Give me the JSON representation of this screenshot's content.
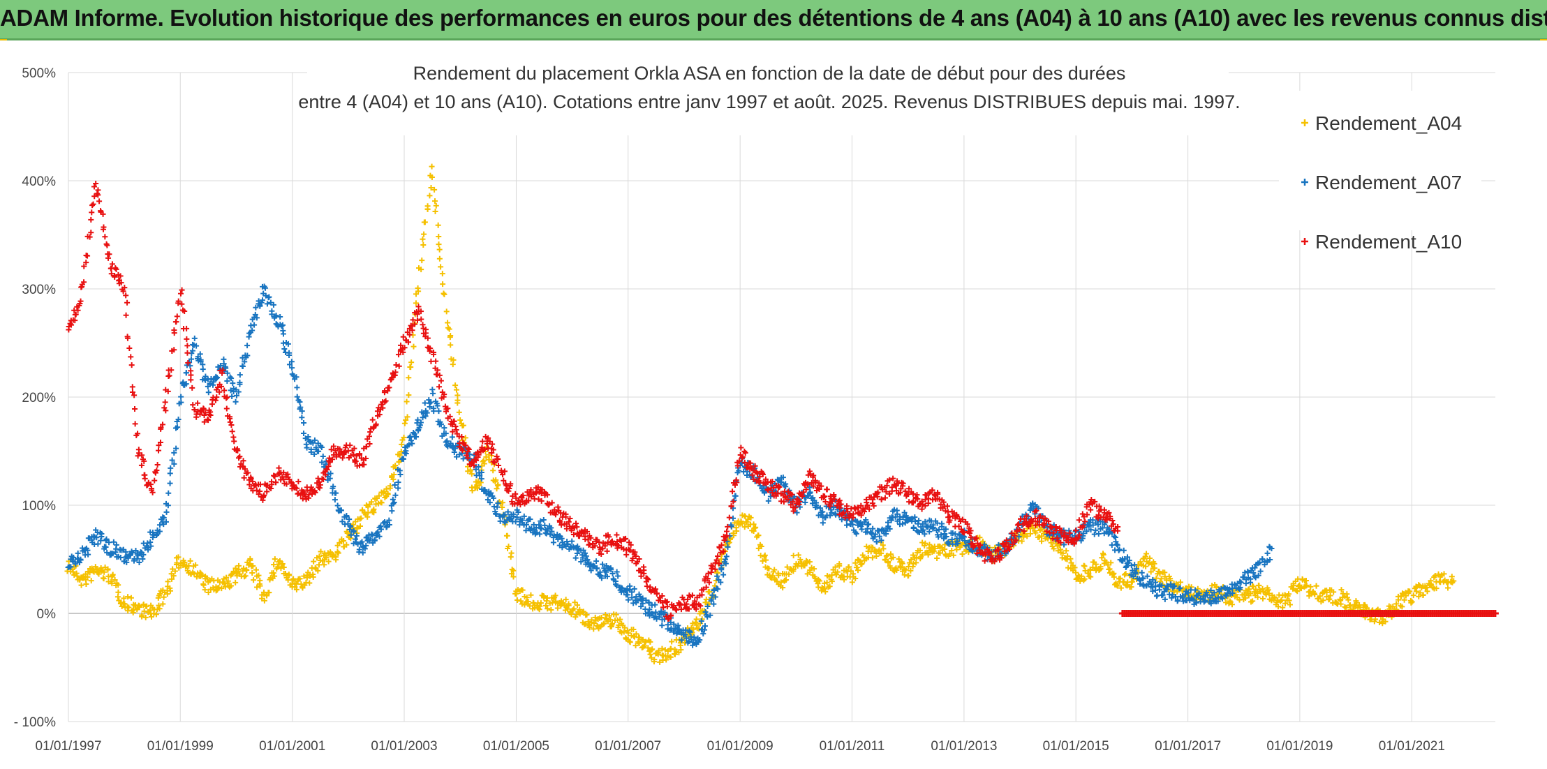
{
  "banner": {
    "text": "ADAM Informe. Evolution historique des performances en euros pour des détentions de 4 ans (A04) à 10 ans (A10) avec les revenus connus distribués"
  },
  "chart_data": {
    "type": "scatter",
    "title_lines": [
      "Rendement du placement Orkla ASA en fonction de la date de début pour des durées",
      "entre 4 (A04) et 10 ans (A10). Cotations entre janv 1997 et août. 2025. Revenus DISTRIBUES depuis mai. 1997."
    ],
    "xlabel": "",
    "ylabel": "",
    "x_range": [
      "1997-01-01",
      "2022-06-30"
    ],
    "ylim": [
      -100,
      500
    ],
    "y_ticks": [
      -100,
      0,
      100,
      200,
      300,
      400,
      500
    ],
    "y_tick_labels": [
      "- 100%",
      "0%",
      "100%",
      "200%",
      "300%",
      "400%",
      "500%"
    ],
    "x_tick_labels": [
      "01/01/1997",
      "01/01/1999",
      "01/01/2001",
      "01/01/2003",
      "01/01/2005",
      "01/01/2007",
      "01/01/2009",
      "01/01/2011",
      "01/01/2013",
      "01/01/2015",
      "01/01/2017",
      "01/01/2019",
      "01/01/2021"
    ],
    "grid": true,
    "legend_position": "top-right",
    "marker": "+",
    "series": [
      {
        "name": "Rendement_A04",
        "color": "#f5c000",
        "x": [
          "1997-01-01",
          "1997-04-01",
          "1997-07-01",
          "1997-10-01",
          "1998-01-01",
          "1998-04-01",
          "1998-07-01",
          "1998-10-01",
          "1999-01-01",
          "1999-04-01",
          "1999-07-01",
          "1999-10-01",
          "2000-01-01",
          "2000-04-01",
          "2000-07-01",
          "2000-10-01",
          "2001-01-01",
          "2001-04-01",
          "2001-07-01",
          "2001-10-01",
          "2002-01-01",
          "2002-04-01",
          "2002-07-01",
          "2002-10-01",
          "2003-01-01",
          "2003-04-01",
          "2003-07-01",
          "2003-10-01",
          "2004-01-01",
          "2004-04-01",
          "2004-07-01",
          "2004-10-01",
          "2005-01-01",
          "2005-04-01",
          "2005-07-01",
          "2005-10-01",
          "2006-01-01",
          "2006-04-01",
          "2006-07-01",
          "2006-10-01",
          "2007-01-01",
          "2007-04-01",
          "2007-07-01",
          "2007-10-01",
          "2008-01-01",
          "2008-04-01",
          "2008-07-01",
          "2008-10-01",
          "2009-01-01",
          "2009-04-01",
          "2009-07-01",
          "2009-10-01",
          "2010-01-01",
          "2010-04-01",
          "2010-07-01",
          "2010-10-01",
          "2011-01-01",
          "2011-04-01",
          "2011-07-01",
          "2011-10-01",
          "2012-01-01",
          "2012-04-01",
          "2012-07-01",
          "2012-10-01",
          "2013-01-01",
          "2013-04-01",
          "2013-07-01",
          "2013-10-01",
          "2014-01-01",
          "2014-04-01",
          "2014-07-01",
          "2014-10-01",
          "2015-01-01",
          "2015-04-01",
          "2015-07-01",
          "2015-10-01",
          "2016-01-01",
          "2016-04-01",
          "2016-07-01",
          "2016-10-01",
          "2017-01-01",
          "2017-04-01",
          "2017-07-01",
          "2017-10-01",
          "2018-01-01",
          "2018-04-01",
          "2018-07-01",
          "2018-10-01",
          "2019-01-01",
          "2019-04-01",
          "2019-07-01",
          "2019-10-01",
          "2020-01-01",
          "2020-04-01",
          "2020-07-01",
          "2020-10-01",
          "2021-01-01",
          "2021-04-01",
          "2021-07-01",
          "2021-10-01"
        ],
        "y": [
          45,
          30,
          40,
          35,
          10,
          5,
          0,
          20,
          50,
          40,
          25,
          25,
          35,
          45,
          15,
          50,
          25,
          30,
          50,
          55,
          70,
          90,
          100,
          120,
          160,
          300,
          410,
          280,
          180,
          110,
          150,
          100,
          20,
          10,
          10,
          10,
          5,
          -5,
          -10,
          -5,
          -20,
          -25,
          -40,
          -35,
          -25,
          -10,
          20,
          60,
          90,
          80,
          40,
          30,
          50,
          40,
          25,
          40,
          35,
          55,
          60,
          45,
          40,
          60,
          55,
          60,
          60,
          65,
          55,
          60,
          70,
          80,
          70,
          60,
          35,
          40,
          50,
          30,
          30,
          50,
          35,
          25,
          20,
          15,
          20,
          15,
          15,
          20,
          15,
          10,
          30,
          20,
          15,
          15,
          5,
          0,
          -5,
          10,
          15,
          25,
          30,
          30
        ]
      },
      {
        "name": "Rendement_A07",
        "color": "#1874c0",
        "x": [
          "1997-01-01",
          "1997-04-01",
          "1997-07-01",
          "1997-10-01",
          "1998-01-01",
          "1998-04-01",
          "1998-07-01",
          "1998-10-01",
          "1999-01-01",
          "1999-04-01",
          "1999-07-01",
          "1999-10-01",
          "2000-01-01",
          "2000-04-01",
          "2000-07-01",
          "2000-10-01",
          "2001-01-01",
          "2001-04-01",
          "2001-07-01",
          "2001-10-01",
          "2002-01-01",
          "2002-04-01",
          "2002-07-01",
          "2002-10-01",
          "2003-01-01",
          "2003-04-01",
          "2003-07-01",
          "2003-10-01",
          "2004-01-01",
          "2004-04-01",
          "2004-07-01",
          "2004-10-01",
          "2005-01-01",
          "2005-04-01",
          "2005-07-01",
          "2005-10-01",
          "2006-01-01",
          "2006-04-01",
          "2006-07-01",
          "2006-10-01",
          "2007-01-01",
          "2007-04-01",
          "2007-07-01",
          "2007-10-01",
          "2008-01-01",
          "2008-04-01",
          "2008-07-01",
          "2008-10-01",
          "2009-01-01",
          "2009-04-01",
          "2009-07-01",
          "2009-10-01",
          "2010-01-01",
          "2010-04-01",
          "2010-07-01",
          "2010-10-01",
          "2011-01-01",
          "2011-04-01",
          "2011-07-01",
          "2011-10-01",
          "2012-01-01",
          "2012-04-01",
          "2012-07-01",
          "2012-10-01",
          "2013-01-01",
          "2013-04-01",
          "2013-07-01",
          "2013-10-01",
          "2014-01-01",
          "2014-04-01",
          "2014-07-01",
          "2014-10-01",
          "2015-01-01",
          "2015-04-01",
          "2015-07-01",
          "2015-10-01",
          "2016-01-01",
          "2016-04-01",
          "2016-07-01",
          "2016-10-01",
          "2017-01-01",
          "2017-04-01",
          "2017-07-01",
          "2017-10-01",
          "2018-01-01",
          "2018-04-01",
          "2018-07-01"
        ],
        "y": [
          45,
          55,
          70,
          60,
          55,
          50,
          70,
          90,
          200,
          250,
          210,
          230,
          200,
          260,
          300,
          270,
          230,
          160,
          150,
          110,
          80,
          60,
          70,
          90,
          150,
          175,
          200,
          160,
          150,
          140,
          110,
          90,
          90,
          80,
          80,
          70,
          60,
          50,
          40,
          35,
          20,
          10,
          0,
          -10,
          -20,
          -25,
          10,
          50,
          140,
          130,
          110,
          120,
          100,
          110,
          90,
          100,
          80,
          80,
          70,
          90,
          85,
          80,
          80,
          70,
          70,
          60,
          55,
          60,
          80,
          100,
          80,
          70,
          70,
          80,
          80,
          60,
          40,
          30,
          20,
          20,
          15,
          15,
          15,
          20,
          30,
          40,
          60
        ]
      },
      {
        "name": "Rendement_A10",
        "color": "#e81010",
        "x": [
          "1997-01-01",
          "1997-04-01",
          "1997-07-01",
          "1997-10-01",
          "1998-01-01",
          "1998-04-01",
          "1998-07-01",
          "1998-10-01",
          "1999-01-01",
          "1999-04-01",
          "1999-07-01",
          "1999-10-01",
          "2000-01-01",
          "2000-04-01",
          "2000-07-01",
          "2000-10-01",
          "2001-01-01",
          "2001-04-01",
          "2001-07-01",
          "2001-10-01",
          "2002-01-01",
          "2002-04-01",
          "2002-07-01",
          "2002-10-01",
          "2003-01-01",
          "2003-04-01",
          "2003-07-01",
          "2003-10-01",
          "2004-01-01",
          "2004-04-01",
          "2004-07-01",
          "2004-10-01",
          "2005-01-01",
          "2005-04-01",
          "2005-07-01",
          "2005-10-01",
          "2006-01-01",
          "2006-04-01",
          "2006-07-01",
          "2006-10-01",
          "2007-01-01",
          "2007-04-01",
          "2007-07-01",
          "2007-10-01",
          "2008-01-01",
          "2008-04-01",
          "2008-07-01",
          "2008-10-01",
          "2009-01-01",
          "2009-04-01",
          "2009-07-01",
          "2009-10-01",
          "2010-01-01",
          "2010-04-01",
          "2010-07-01",
          "2010-10-01",
          "2011-01-01",
          "2011-04-01",
          "2011-07-01",
          "2011-10-01",
          "2012-01-01",
          "2012-04-01",
          "2012-07-01",
          "2012-10-01",
          "2013-01-01",
          "2013-04-01",
          "2013-07-01",
          "2013-10-01",
          "2014-01-01",
          "2014-04-01",
          "2014-07-01",
          "2014-10-01",
          "2015-01-01",
          "2015-04-01",
          "2015-07-01",
          "2015-10-01"
        ],
        "y": [
          260,
          300,
          400,
          320,
          300,
          150,
          110,
          200,
          300,
          190,
          180,
          220,
          150,
          120,
          110,
          130,
          120,
          110,
          120,
          150,
          150,
          140,
          180,
          210,
          250,
          280,
          240,
          190,
          160,
          140,
          160,
          130,
          100,
          110,
          110,
          90,
          80,
          70,
          60,
          70,
          60,
          40,
          20,
          0,
          10,
          10,
          40,
          70,
          150,
          130,
          120,
          110,
          100,
          130,
          110,
          100,
          90,
          100,
          110,
          120,
          110,
          100,
          110,
          90,
          80,
          60,
          50,
          60,
          80,
          90,
          80,
          70,
          70,
          100,
          90,
          80
        ]
      },
      {
        "name": "",
        "color": "#e81010",
        "x": [
          "2015-11-01",
          "2022-06-30"
        ],
        "y": [
          0,
          0
        ]
      }
    ]
  }
}
